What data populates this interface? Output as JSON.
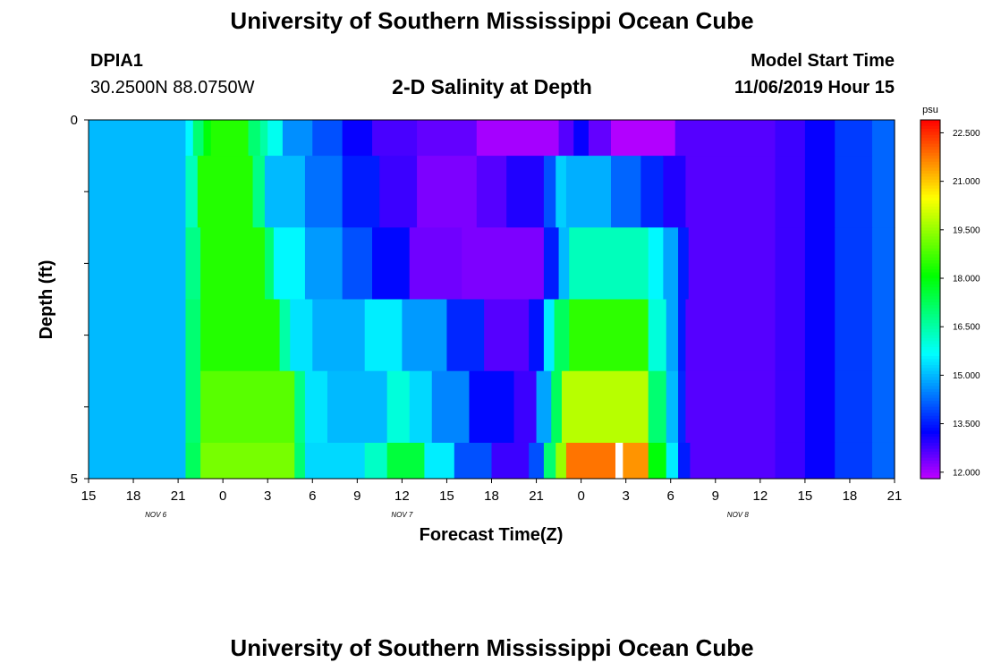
{
  "page": {
    "title_top": "University of Southern Mississippi Ocean Cube",
    "title_bottom": "University of Southern Mississippi Ocean Cube",
    "station_id": "DPIA1",
    "station_coords": "30.2500N 88.0750W",
    "subtitle": "2-D Salinity at Depth",
    "model_start_label": "Model Start Time",
    "model_start_value": "11/06/2019 Hour 15"
  },
  "chart_data": {
    "type": "heatmap",
    "variable": "Salinity",
    "title": "2-D Salinity at Depth",
    "xlabel": "Forecast Time(Z)",
    "ylabel": "Depth (ft)",
    "x_hours_range": [
      0,
      54
    ],
    "ylim": [
      0,
      5
    ],
    "x_ticks": [
      {
        "hour": 0,
        "label": "15"
      },
      {
        "hour": 3,
        "label": "18"
      },
      {
        "hour": 6,
        "label": "21"
      },
      {
        "hour": 9,
        "label": "0"
      },
      {
        "hour": 12,
        "label": "3"
      },
      {
        "hour": 15,
        "label": "6"
      },
      {
        "hour": 18,
        "label": "9"
      },
      {
        "hour": 21,
        "label": "12"
      },
      {
        "hour": 24,
        "label": "15"
      },
      {
        "hour": 27,
        "label": "18"
      },
      {
        "hour": 30,
        "label": "21"
      },
      {
        "hour": 33,
        "label": "0"
      },
      {
        "hour": 36,
        "label": "3"
      },
      {
        "hour": 39,
        "label": "6"
      },
      {
        "hour": 42,
        "label": "9"
      },
      {
        "hour": 45,
        "label": "12"
      },
      {
        "hour": 48,
        "label": "15"
      },
      {
        "hour": 51,
        "label": "18"
      },
      {
        "hour": 54,
        "label": "21"
      }
    ],
    "date_labels": [
      {
        "hour": 4.5,
        "label": "NOV 6"
      },
      {
        "hour": 21,
        "label": "NOV 7"
      },
      {
        "hour": 43.5,
        "label": "NOV 8"
      }
    ],
    "y_ticks": [
      {
        "value": 0,
        "label": "0"
      },
      {
        "value": 5,
        "label": "5"
      }
    ],
    "colorbar": {
      "unit": "psu",
      "min": 11.8,
      "max": 22.9,
      "ticks": [
        "22.500",
        "21.000",
        "19.500",
        "18.000",
        "16.500",
        "15.000",
        "13.500",
        "12.000"
      ],
      "tick_values": [
        22.5,
        21.0,
        19.5,
        18.0,
        16.5,
        15.0,
        13.5,
        12.0
      ]
    },
    "layers": [
      {
        "depth_range": [
          0,
          0.5
        ],
        "segments": [
          [
            0,
            6.5,
            15.0
          ],
          [
            6.5,
            7.0,
            15.6
          ],
          [
            7.0,
            7.7,
            17.0
          ],
          [
            7.7,
            8.2,
            18.0
          ],
          [
            8.2,
            10.7,
            18.4
          ],
          [
            10.7,
            11.5,
            17.0
          ],
          [
            11.5,
            12.0,
            16.5
          ],
          [
            12.0,
            13.0,
            15.8
          ],
          [
            13.0,
            15.0,
            14.6
          ],
          [
            15.0,
            17.0,
            14.0
          ],
          [
            17.0,
            19.0,
            13.2
          ],
          [
            19.0,
            22.0,
            12.7
          ],
          [
            22.0,
            26.0,
            12.5
          ],
          [
            26.0,
            31.5,
            12.0
          ],
          [
            31.5,
            32.5,
            12.6
          ],
          [
            32.5,
            33.5,
            13.2
          ],
          [
            33.5,
            35.0,
            12.5
          ],
          [
            35.0,
            39.3,
            11.9
          ],
          [
            39.3,
            46.0,
            12.6
          ],
          [
            46.0,
            48.0,
            12.8
          ],
          [
            48.0,
            50.0,
            13.2
          ],
          [
            50.0,
            52.5,
            13.8
          ],
          [
            52.5,
            54.0,
            14.2
          ]
        ]
      },
      {
        "depth_range": [
          0.5,
          1.5
        ],
        "segments": [
          [
            0,
            6.5,
            15.0
          ],
          [
            6.5,
            7.3,
            16.3
          ],
          [
            7.3,
            11.0,
            18.4
          ],
          [
            11.0,
            11.8,
            16.8
          ],
          [
            11.8,
            14.5,
            15.0
          ],
          [
            14.5,
            17.0,
            14.3
          ],
          [
            17.0,
            19.5,
            13.5
          ],
          [
            19.5,
            22.0,
            12.8
          ],
          [
            22.0,
            26.0,
            12.3
          ],
          [
            26.0,
            28.0,
            12.6
          ],
          [
            28.0,
            30.5,
            13.0
          ],
          [
            30.5,
            31.3,
            14.0
          ],
          [
            31.3,
            32.0,
            15.2
          ],
          [
            32.0,
            35.0,
            14.9
          ],
          [
            35.0,
            37.0,
            14.2
          ],
          [
            37.0,
            38.5,
            13.6
          ],
          [
            38.5,
            40.0,
            13.0
          ],
          [
            40.0,
            46.0,
            12.6
          ],
          [
            46.0,
            48.0,
            12.8
          ],
          [
            48.0,
            50.0,
            13.2
          ],
          [
            50.0,
            52.5,
            13.8
          ],
          [
            52.5,
            54.0,
            14.2
          ]
        ]
      },
      {
        "depth_range": [
          1.5,
          2.5
        ],
        "segments": [
          [
            0,
            6.5,
            15.0
          ],
          [
            6.5,
            7.5,
            16.8
          ],
          [
            7.5,
            11.8,
            18.4
          ],
          [
            11.8,
            12.4,
            17.0
          ],
          [
            12.4,
            14.5,
            15.6
          ],
          [
            14.5,
            17.0,
            14.7
          ],
          [
            17.0,
            19.0,
            14.0
          ],
          [
            19.0,
            21.5,
            13.3
          ],
          [
            21.5,
            25.0,
            12.4
          ],
          [
            25.0,
            30.5,
            12.3
          ],
          [
            30.5,
            31.5,
            13.5
          ],
          [
            31.5,
            32.2,
            15.0
          ],
          [
            32.2,
            37.5,
            16.3
          ],
          [
            37.5,
            38.5,
            15.6
          ],
          [
            38.5,
            39.5,
            14.8
          ],
          [
            39.5,
            40.2,
            13.5
          ],
          [
            40.2,
            46.0,
            12.6
          ],
          [
            46.0,
            48.0,
            12.8
          ],
          [
            48.0,
            50.0,
            13.2
          ],
          [
            50.0,
            52.5,
            13.8
          ],
          [
            52.5,
            54.0,
            14.2
          ]
        ]
      },
      {
        "depth_range": [
          2.5,
          3.5
        ],
        "segments": [
          [
            0,
            6.5,
            15.0
          ],
          [
            6.5,
            7.5,
            17.0
          ],
          [
            7.5,
            12.8,
            18.4
          ],
          [
            12.8,
            13.5,
            16.5
          ],
          [
            13.5,
            15.0,
            15.4
          ],
          [
            15.0,
            18.5,
            14.9
          ],
          [
            18.5,
            21.0,
            15.5
          ],
          [
            21.0,
            24.0,
            14.7
          ],
          [
            24.0,
            26.5,
            13.6
          ],
          [
            26.5,
            29.5,
            12.6
          ],
          [
            29.5,
            30.5,
            13.4
          ],
          [
            30.5,
            31.2,
            15.5
          ],
          [
            31.2,
            32.2,
            17.2
          ],
          [
            32.2,
            37.5,
            18.5
          ],
          [
            37.5,
            38.7,
            16.0
          ],
          [
            38.7,
            39.5,
            14.8
          ],
          [
            39.5,
            40.0,
            13.5
          ],
          [
            40.0,
            46.0,
            12.6
          ],
          [
            46.0,
            48.0,
            12.8
          ],
          [
            48.0,
            50.0,
            13.2
          ],
          [
            50.0,
            52.5,
            13.8
          ],
          [
            52.5,
            54.0,
            14.2
          ]
        ]
      },
      {
        "depth_range": [
          3.5,
          4.5
        ],
        "segments": [
          [
            0,
            6.5,
            15.0
          ],
          [
            6.5,
            7.5,
            17.0
          ],
          [
            7.5,
            13.8,
            18.9
          ],
          [
            13.8,
            14.5,
            16.8
          ],
          [
            14.5,
            16.0,
            15.4
          ],
          [
            16.0,
            20.0,
            15.0
          ],
          [
            20.0,
            21.5,
            16.0
          ],
          [
            21.5,
            23.0,
            15.3
          ],
          [
            23.0,
            25.5,
            14.5
          ],
          [
            25.5,
            28.5,
            13.3
          ],
          [
            28.5,
            30.0,
            12.8
          ],
          [
            30.0,
            31.0,
            14.8
          ],
          [
            31.0,
            31.7,
            17.2
          ],
          [
            31.7,
            37.5,
            19.8
          ],
          [
            37.5,
            38.7,
            17.0
          ],
          [
            38.7,
            39.5,
            15.0
          ],
          [
            39.5,
            40.0,
            13.6
          ],
          [
            40.0,
            46.0,
            12.6
          ],
          [
            46.0,
            48.0,
            12.8
          ],
          [
            48.0,
            50.0,
            13.2
          ],
          [
            50.0,
            52.5,
            13.8
          ],
          [
            52.5,
            54.0,
            14.2
          ]
        ]
      },
      {
        "depth_range": [
          4.5,
          5
        ],
        "segments": [
          [
            0,
            6.5,
            15.0
          ],
          [
            6.5,
            7.5,
            17.2
          ],
          [
            7.5,
            13.8,
            19.2
          ],
          [
            13.8,
            14.5,
            17.0
          ],
          [
            14.5,
            18.5,
            15.3
          ],
          [
            18.5,
            20.0,
            16.2
          ],
          [
            20.0,
            22.5,
            17.5
          ],
          [
            22.5,
            24.5,
            15.5
          ],
          [
            24.5,
            27.0,
            14.0
          ],
          [
            27.0,
            29.5,
            12.8
          ],
          [
            29.5,
            30.5,
            14.0
          ],
          [
            30.5,
            31.3,
            17.0
          ],
          [
            31.3,
            32.0,
            19.5
          ],
          [
            32.0,
            35.3,
            21.8
          ],
          [
            35.3,
            35.8,
            null
          ],
          [
            35.8,
            37.5,
            21.5
          ],
          [
            37.5,
            38.7,
            18.0
          ],
          [
            38.7,
            39.5,
            15.5
          ],
          [
            39.5,
            40.3,
            13.5
          ],
          [
            40.3,
            46.0,
            12.6
          ],
          [
            46.0,
            48.0,
            12.8
          ],
          [
            48.0,
            50.0,
            13.2
          ],
          [
            50.0,
            52.5,
            13.8
          ],
          [
            52.5,
            54.0,
            14.2
          ]
        ]
      }
    ]
  }
}
